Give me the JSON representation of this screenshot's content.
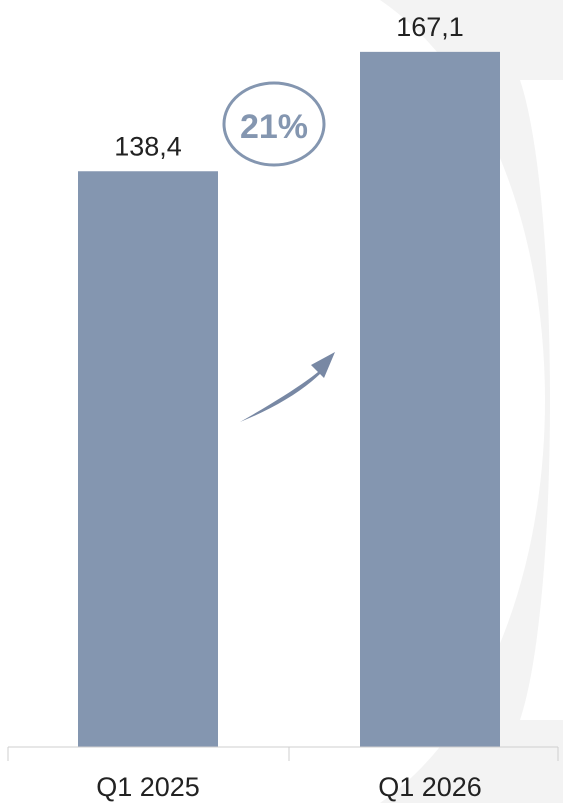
{
  "chart_data": {
    "type": "bar",
    "categories": [
      "Q1 2025",
      "Q1 2026"
    ],
    "values": [
      138.4,
      167.1
    ],
    "value_labels": [
      "138,4",
      "167,1"
    ],
    "ylim": [
      0,
      175
    ],
    "grid": false,
    "bar_color": "#8496B0",
    "annotation": {
      "text": "21%",
      "shape": "circle",
      "arrow": "up-right growth arrow between bars",
      "color": "#8496B0"
    }
  }
}
